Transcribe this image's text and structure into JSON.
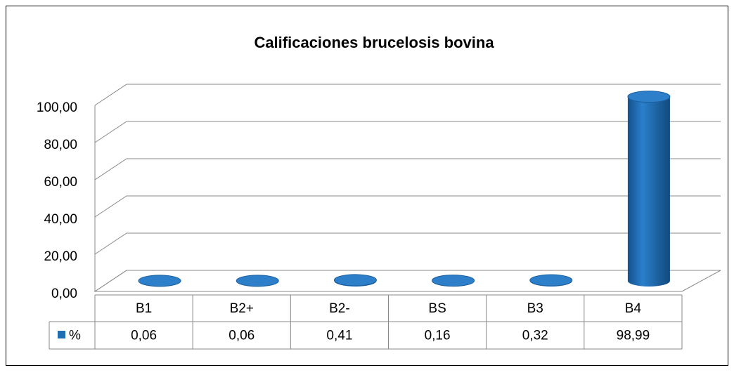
{
  "chart_data": {
    "type": "bar",
    "title": "Calificaciones brucelosis  bovina",
    "categories": [
      "B1",
      "B2+",
      "B2-",
      "BS",
      "B3",
      "B4"
    ],
    "series": [
      {
        "name": "%",
        "color": "#1f6eb4",
        "values": [
          0.06,
          0.06,
          0.41,
          0.16,
          0.32,
          98.99
        ],
        "value_labels": [
          "0,06",
          "0,06",
          "0,41",
          "0,16",
          "0,32",
          "98,99"
        ]
      }
    ],
    "ylim": [
      0,
      100
    ],
    "yticks": [
      {
        "value": 0,
        "label": "0,00"
      },
      {
        "value": 20,
        "label": "20,00"
      },
      {
        "value": 40,
        "label": "40,00"
      },
      {
        "value": 60,
        "label": "60,00"
      },
      {
        "value": 80,
        "label": "80,00"
      },
      {
        "value": 100,
        "label": "100,00"
      }
    ],
    "grid": true,
    "data_table": true
  }
}
